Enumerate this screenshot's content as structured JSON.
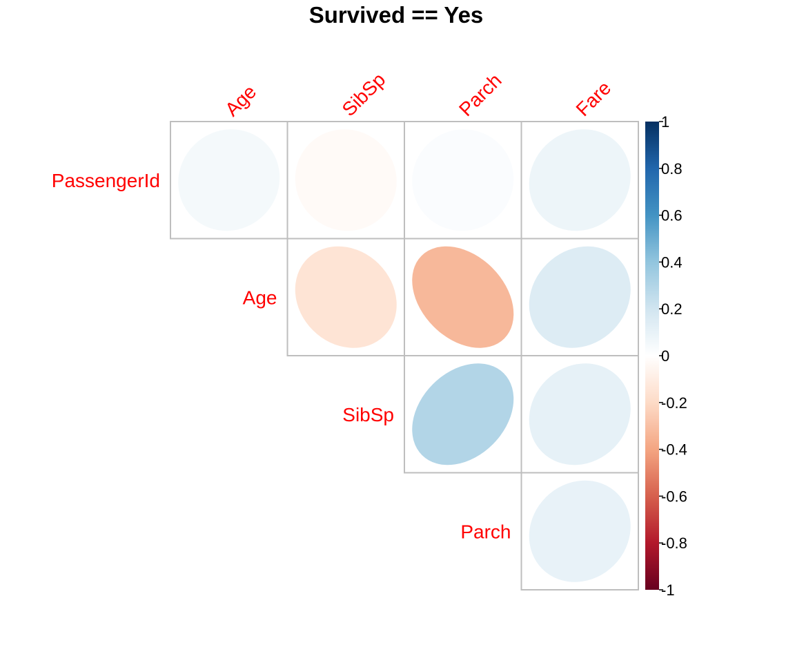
{
  "chart_data": {
    "type": "heatmap",
    "title": "Survived == Yes",
    "row_labels": [
      "PassengerId",
      "Age",
      "SibSp",
      "Parch"
    ],
    "col_labels": [
      "Age",
      "SibSp",
      "Parch",
      "Fare"
    ],
    "method": "ellipse",
    "layout": "upper triangle",
    "cells": [
      {
        "row": "PassengerId",
        "col": "Age",
        "value": 0.05
      },
      {
        "row": "PassengerId",
        "col": "SibSp",
        "value": -0.03
      },
      {
        "row": "PassengerId",
        "col": "Parch",
        "value": 0.02
      },
      {
        "row": "PassengerId",
        "col": "Fare",
        "value": 0.08
      },
      {
        "row": "Age",
        "col": "SibSp",
        "value": -0.15
      },
      {
        "row": "Age",
        "col": "Parch",
        "value": -0.33
      },
      {
        "row": "Age",
        "col": "Fare",
        "value": 0.15
      },
      {
        "row": "SibSp",
        "col": "Parch",
        "value": 0.3
      },
      {
        "row": "SibSp",
        "col": "Fare",
        "value": 0.11
      },
      {
        "row": "Parch",
        "col": "Fare",
        "value": 0.1
      }
    ],
    "colorbar": {
      "range": [
        -1,
        1
      ],
      "tick_labels": [
        "1",
        "0.8",
        "0.6",
        "0.4",
        "0.2",
        "0",
        "-0.2",
        "-0.4",
        "-0.6",
        "-0.8",
        "-1"
      ]
    },
    "colors": {
      "label": "#ff0000",
      "grid": "#bebebe",
      "palette": [
        "#67001f",
        "#b2182b",
        "#d6604d",
        "#f4a582",
        "#fddbc7",
        "#ffffff",
        "#d1e5f0",
        "#92c5de",
        "#4393c3",
        "#2166ac",
        "#053061"
      ]
    }
  }
}
